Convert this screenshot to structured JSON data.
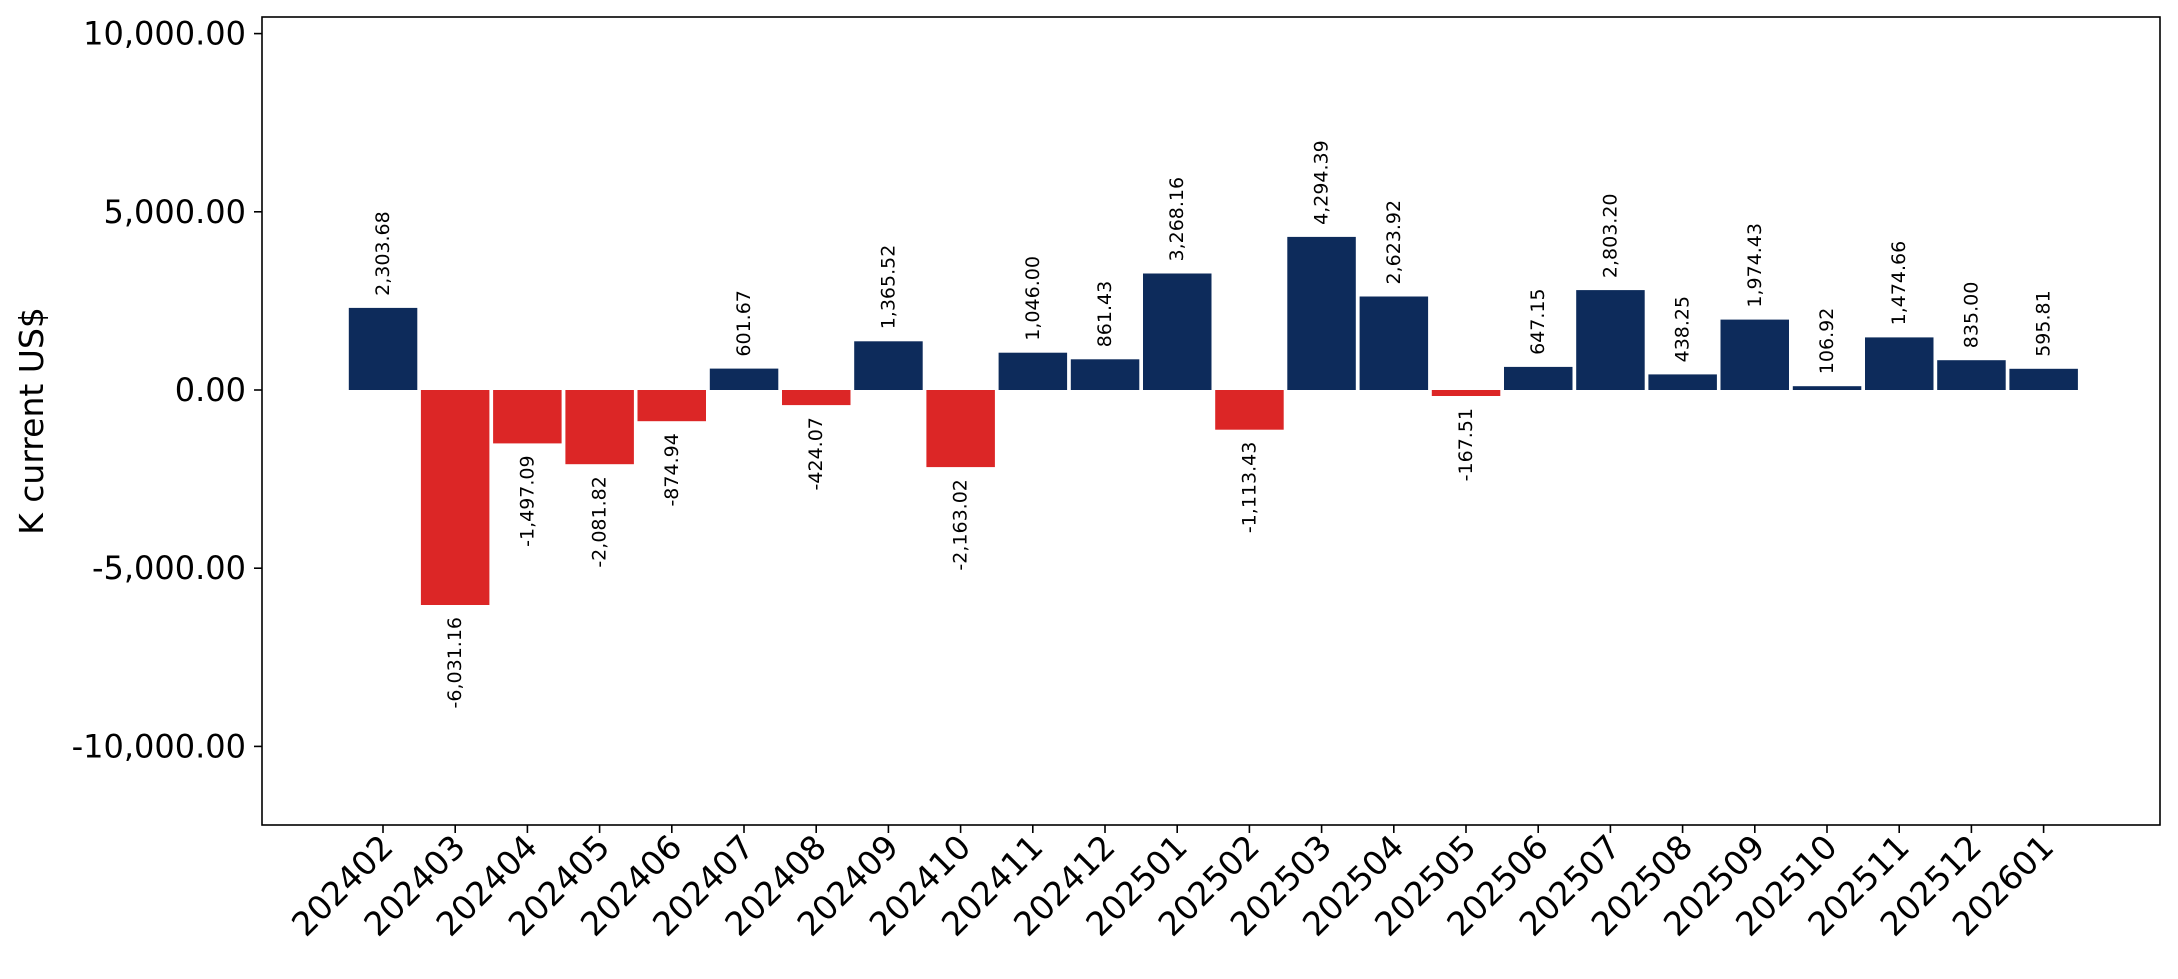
{
  "chart_data": {
    "type": "bar",
    "title": "",
    "xlabel": "",
    "ylabel": "K current US$",
    "ylim": [
      -12200,
      10500
    ],
    "yticks": [
      -10000,
      -5000,
      0,
      5000,
      10000
    ],
    "ytick_labels": [
      "-10,000.00",
      "-5,000.00",
      "0.00",
      "5,000.00",
      "10,000.00"
    ],
    "grid": false,
    "legend": "none",
    "colors": {
      "positive": "#0d2b5b",
      "negative": "#dc2626"
    },
    "categories": [
      "202402",
      "202403",
      "202404",
      "202405",
      "202406",
      "202407",
      "202408",
      "202409",
      "202410",
      "202411",
      "202412",
      "202501",
      "202502",
      "202503",
      "202504",
      "202505",
      "202506",
      "202507",
      "202508",
      "202509",
      "202510",
      "202511",
      "202512",
      "202601"
    ],
    "values": [
      2303.68,
      -6031.16,
      -1497.09,
      -2081.82,
      -874.94,
      601.67,
      -424.07,
      1365.52,
      -2163.02,
      1046.0,
      861.43,
      3268.16,
      -1113.43,
      4294.39,
      2623.92,
      -167.51,
      647.15,
      2803.2,
      438.25,
      1974.43,
      106.92,
      1474.66,
      835.0,
      595.81
    ],
    "value_labels": [
      "2,303.68",
      "-6,031.16",
      "-1,497.09",
      "-2,081.82",
      "-874.94",
      "601.67",
      "-424.07",
      "1,365.52",
      "-2,163.02",
      "1,046.00",
      "861.43",
      "3,268.16",
      "-1,113.43",
      "4,294.39",
      "2,623.92",
      "-167.51",
      "647.15",
      "2,803.20",
      "438.25",
      "1,974.43",
      "106.92",
      "1,474.66",
      "835.00",
      "595.81"
    ]
  }
}
